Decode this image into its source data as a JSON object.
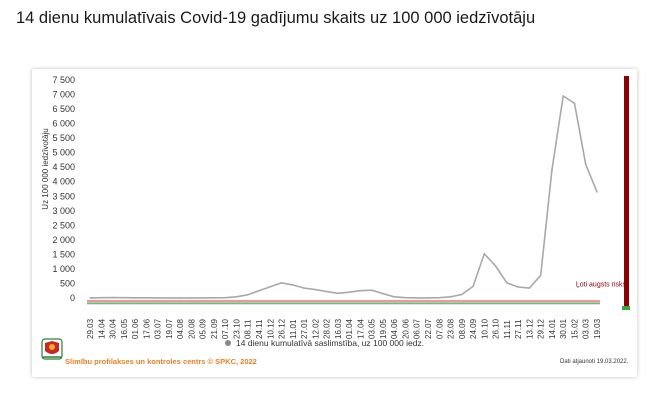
{
  "page_title": "14 dienu kumulatīvais Covid-19 gadījumu skaits uz 100 000 iedzīvotāju",
  "footer": {
    "source": "Slimību profilakses un kontroles centrs © SPKC, 2022",
    "updated": "Dati atjaunoti 19.03.2022."
  },
  "colors": {
    "line": "#a9a9a9",
    "risk_bar": "#8b0000",
    "threshold_line": "#e03030",
    "baseline_green": "#3aa83a",
    "footer_orange": "#e8812a"
  },
  "chart_data": {
    "type": "line",
    "ylabel": "Uz 100 000 iedzīvotāju",
    "ylim": [
      0,
      7500
    ],
    "yticks": [
      0,
      500,
      1000,
      1500,
      2000,
      2500,
      3000,
      3500,
      4000,
      4500,
      5000,
      5500,
      6000,
      6500,
      7000,
      7500
    ],
    "ytick_labels": [
      "0",
      "500",
      "1 000",
      "1 500",
      "2 000",
      "2 500",
      "3 000",
      "3 500",
      "4 000",
      "4 500",
      "5 000",
      "5 500",
      "6 000",
      "6 500",
      "7 000",
      "7 500"
    ],
    "xtick_labels": [
      "29.03",
      "14.04",
      "30.04",
      "16.05",
      "01.06",
      "17.06",
      "03.07",
      "19.07",
      "04.08",
      "20.08",
      "05.09",
      "21.09",
      "07.10",
      "23.10",
      "08.11",
      "24.11",
      "10.12",
      "26.12",
      "11.01",
      "27.01",
      "12.02",
      "28.02",
      "16.03",
      "01.04",
      "17.04",
      "03.05",
      "19.05",
      "04.06",
      "20.06",
      "06.07",
      "22.07",
      "07.08",
      "23.08",
      "08.09",
      "24.09",
      "10.10",
      "26.10",
      "11.11",
      "27.11",
      "13.12",
      "29.12",
      "14.01",
      "30.01",
      "15.02",
      "03.03",
      "19.03"
    ],
    "annotation": "Ļoti augsts risks",
    "legend": "14 dienu kumulatīvā saslimstība, uz 100 000 iedz.",
    "legend_position": "bottom",
    "series": [
      {
        "name": "14 dienu kumulatīvā saslimstība, uz 100 000 iedz.",
        "values": [
          5,
          10,
          15,
          12,
          8,
          6,
          4,
          3,
          3,
          3,
          3,
          6,
          12,
          40,
          110,
          250,
          390,
          520,
          450,
          340,
          290,
          220,
          160,
          200,
          250,
          270,
          150,
          40,
          10,
          5,
          5,
          10,
          40,
          120,
          400,
          1520,
          1100,
          520,
          380,
          340,
          780,
          4400,
          6950,
          6700,
          4600,
          3650
        ]
      }
    ]
  }
}
